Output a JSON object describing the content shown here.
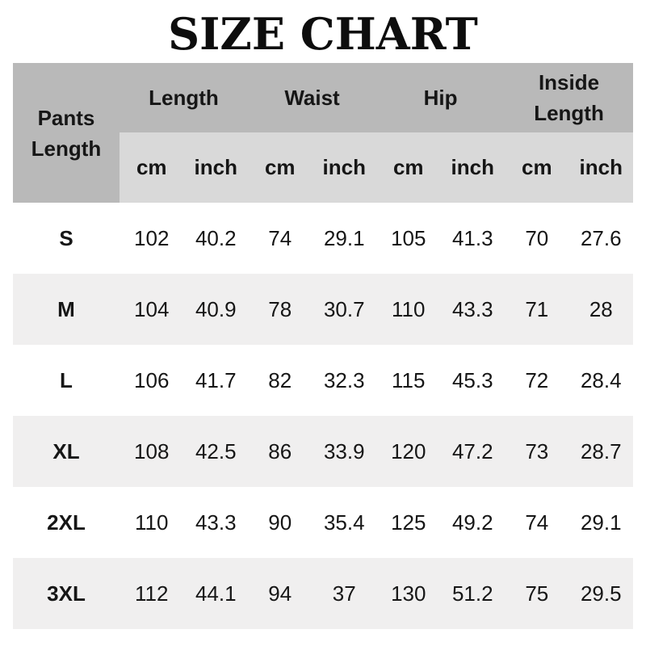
{
  "title": "SIZE CHART",
  "colors": {
    "header_dark": "#b9b9b9",
    "header_light": "#d9d9d9",
    "row_stripe": "#f0efef",
    "row_plain": "#ffffff",
    "text": "#161616"
  },
  "chart_data": {
    "type": "table",
    "title": "SIZE CHART",
    "corner_header": "Pants Length",
    "column_groups": [
      {
        "label": "Length"
      },
      {
        "label": "Waist"
      },
      {
        "label": "Hip"
      },
      {
        "label": "Inside Length"
      }
    ],
    "unit_headers": [
      "cm",
      "inch",
      "cm",
      "inch",
      "cm",
      "inch",
      "cm",
      "inch"
    ],
    "rows": [
      {
        "size": "S",
        "values": [
          102,
          40.2,
          74,
          29.1,
          105,
          41.3,
          70,
          27.6
        ]
      },
      {
        "size": "M",
        "values": [
          104,
          40.9,
          78,
          30.7,
          110,
          43.3,
          71,
          28
        ]
      },
      {
        "size": "L",
        "values": [
          106,
          41.7,
          82,
          32.3,
          115,
          45.3,
          72,
          28.4
        ]
      },
      {
        "size": "XL",
        "values": [
          108,
          42.5,
          86,
          33.9,
          120,
          47.2,
          73,
          28.7
        ]
      },
      {
        "size": "2XL",
        "values": [
          110,
          43.3,
          90,
          35.4,
          125,
          49.2,
          74,
          29.1
        ]
      },
      {
        "size": "3XL",
        "values": [
          112,
          44.1,
          94,
          37,
          130,
          51.2,
          75,
          29.5
        ]
      }
    ]
  }
}
